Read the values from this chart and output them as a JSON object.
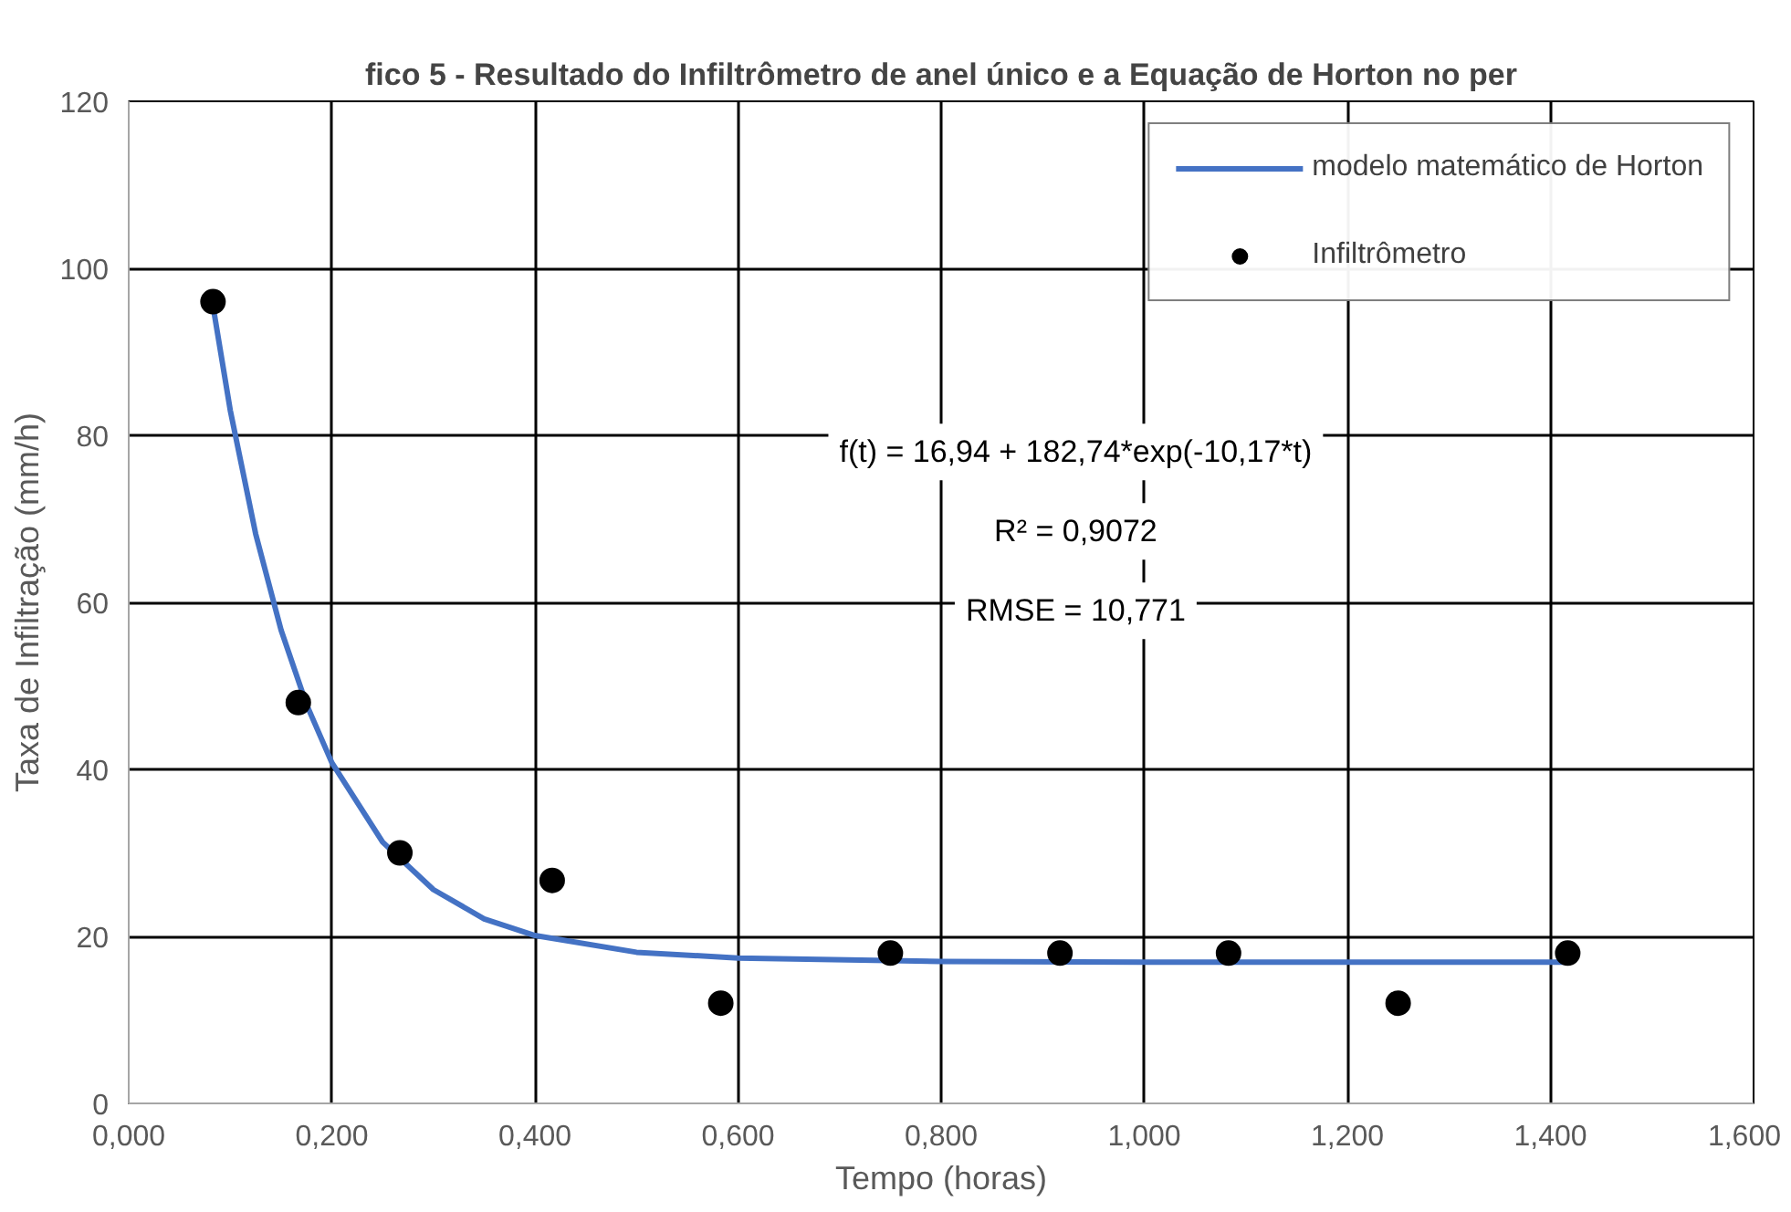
{
  "chart_data": {
    "type": "scatter",
    "title": "fico 5 - Resultado do Infiltrômetro de anel único e a Equação de Horton no per",
    "xlabel": "Tempo (horas)",
    "ylabel": "Taxa de Infiltração (mm/h)",
    "xlim": [
      0,
      1.6
    ],
    "ylim": [
      0,
      120
    ],
    "xticks": [
      {
        "value": 0,
        "label": "0,000"
      },
      {
        "value": 0.2,
        "label": "0,200"
      },
      {
        "value": 0.4,
        "label": "0,400"
      },
      {
        "value": 0.6,
        "label": "0,600"
      },
      {
        "value": 0.8,
        "label": "0,800"
      },
      {
        "value": 1.0,
        "label": "1,000"
      },
      {
        "value": 1.2,
        "label": "1,200"
      },
      {
        "value": 1.4,
        "label": "1,400"
      },
      {
        "value": 1.6,
        "label": "1,600"
      }
    ],
    "yticks": [
      0,
      20,
      40,
      60,
      80,
      100,
      120
    ],
    "grid": true,
    "legend": "top right",
    "series": [
      {
        "name": "modelo matemático de Horton",
        "type": "line",
        "color": "#4472c4",
        "marker": "none",
        "line_style": "solid",
        "x": [
          0.083,
          0.1,
          0.125,
          0.15,
          0.175,
          0.2,
          0.25,
          0.3,
          0.35,
          0.4,
          0.5,
          0.6,
          0.8,
          1.0,
          1.2,
          1.417
        ],
        "values": [
          95.5,
          83.0,
          68.2,
          56.7,
          47.8,
          40.8,
          31.3,
          25.6,
          22.1,
          20.1,
          18.1,
          17.4,
          17.0,
          16.9,
          16.9,
          16.9
        ]
      },
      {
        "name": "Infiltrômetro",
        "color": "#000000",
        "x": [
          0.083,
          0.167,
          0.267,
          0.417,
          0.583,
          0.75,
          0.917,
          1.083,
          1.25,
          1.417
        ],
        "values": [
          96,
          48,
          30,
          26.7,
          12,
          18,
          18,
          18,
          12,
          18
        ]
      }
    ],
    "annotations": [
      "f(t) = 16,94 + 182,74*exp(-10,17*t)",
      "R² = 0,9072",
      "RMSE = 10,771"
    ]
  }
}
